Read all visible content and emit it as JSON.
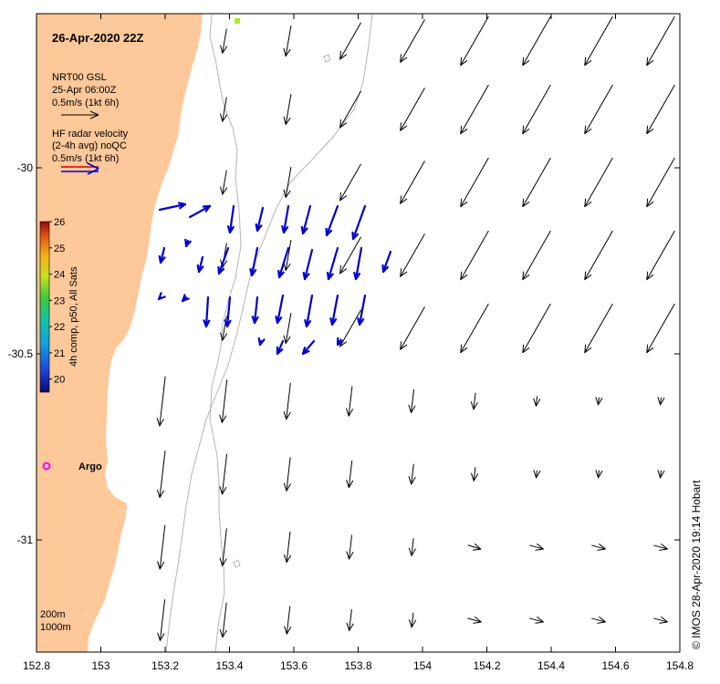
{
  "map": {
    "title": "26-Apr-2020 22Z",
    "x_ticks": [
      "152.8",
      "153",
      "153.2",
      "153.4",
      "153.6",
      "153.8",
      "154",
      "154.2",
      "154.4",
      "154.6",
      "154.8"
    ],
    "y_ticks": [
      "-30",
      "-30.5",
      "-31"
    ],
    "land_color": "#FDC89A",
    "model_vector_color": "#000000",
    "radar_vector_color": "#0000CC",
    "legend": {
      "model_name": "NRT00 GSL",
      "model_time": "25-Apr 06:00Z",
      "model_scale": "0.5m/s (1kt 6h)",
      "radar_line1": "HF radar velocity",
      "radar_line2": "(2-4h avg) noQC",
      "radar_scale": "0.5m/s (1kt 6h)"
    },
    "colorbar": {
      "label": "4h comp, p50, All Sats",
      "ticks": [
        "26",
        "25",
        "24",
        "23",
        "22",
        "21",
        "20"
      ],
      "range": [
        19.5,
        26.0
      ]
    },
    "argo_label": "Argo",
    "argo_marker_color": "#FF00FF",
    "isobath_labels": [
      "200m",
      "1000m"
    ],
    "credit": "© IMOS 28-Apr-2020 19:14 Hobart"
  }
}
